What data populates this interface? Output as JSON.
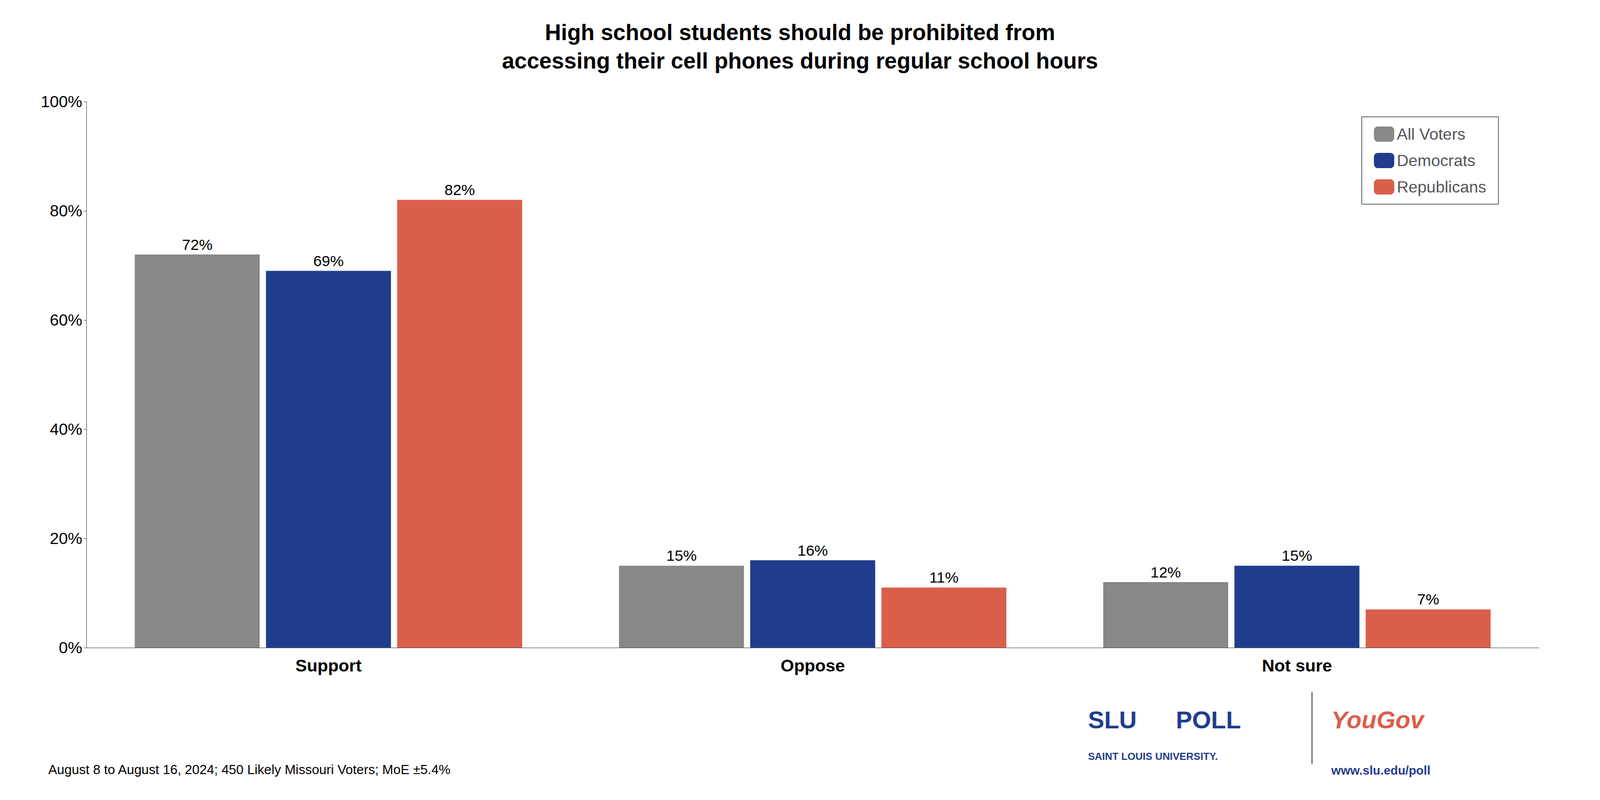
{
  "chart_data": {
    "type": "bar",
    "title": "High school students should be prohibited from\naccessing their cell phones during regular school hours",
    "categories": [
      "Support",
      "Oppose",
      "Not sure"
    ],
    "series": [
      {
        "name": "All Voters",
        "color": "#888888",
        "values": [
          72,
          15,
          12
        ],
        "value_labels": [
          "72%",
          "15%",
          "12%"
        ]
      },
      {
        "name": "Democrats",
        "color": "#1f3d8c",
        "values": [
          69,
          16,
          15
        ],
        "value_labels": [
          "69%",
          "16%",
          "15%"
        ]
      },
      {
        "name": "Republicans",
        "color": "#d95f4b",
        "values": [
          82,
          11,
          7
        ],
        "value_labels": [
          "82%",
          "11%",
          "7%"
        ]
      }
    ],
    "ylim": [
      0,
      100
    ],
    "yticks": [
      {
        "value": 0,
        "label": "0%"
      },
      {
        "value": 20,
        "label": "20%"
      },
      {
        "value": 40,
        "label": "40%"
      },
      {
        "value": 60,
        "label": "60%"
      },
      {
        "value": 80,
        "label": "80%"
      },
      {
        "value": 100,
        "label": "100%"
      }
    ],
    "grid": false,
    "legend": "upper right",
    "data_labels": true,
    "annotations": [
      {
        "text": "August 8 to August 16, 2024; 450 Likely Missouri Voters; MoE ±5.4%"
      },
      {
        "text": "SLU",
        "color": "#1f3d8c"
      },
      {
        "text": "POLL",
        "color": "#1f3d8c"
      },
      {
        "text": "SAINT LOUIS UNIVERSITY.",
        "color": "#1f3d8c"
      },
      {
        "text": "YouGov",
        "color": "#d95f4b"
      },
      {
        "text": "www.slu.edu/poll",
        "color": "#1f3d8c"
      }
    ]
  }
}
